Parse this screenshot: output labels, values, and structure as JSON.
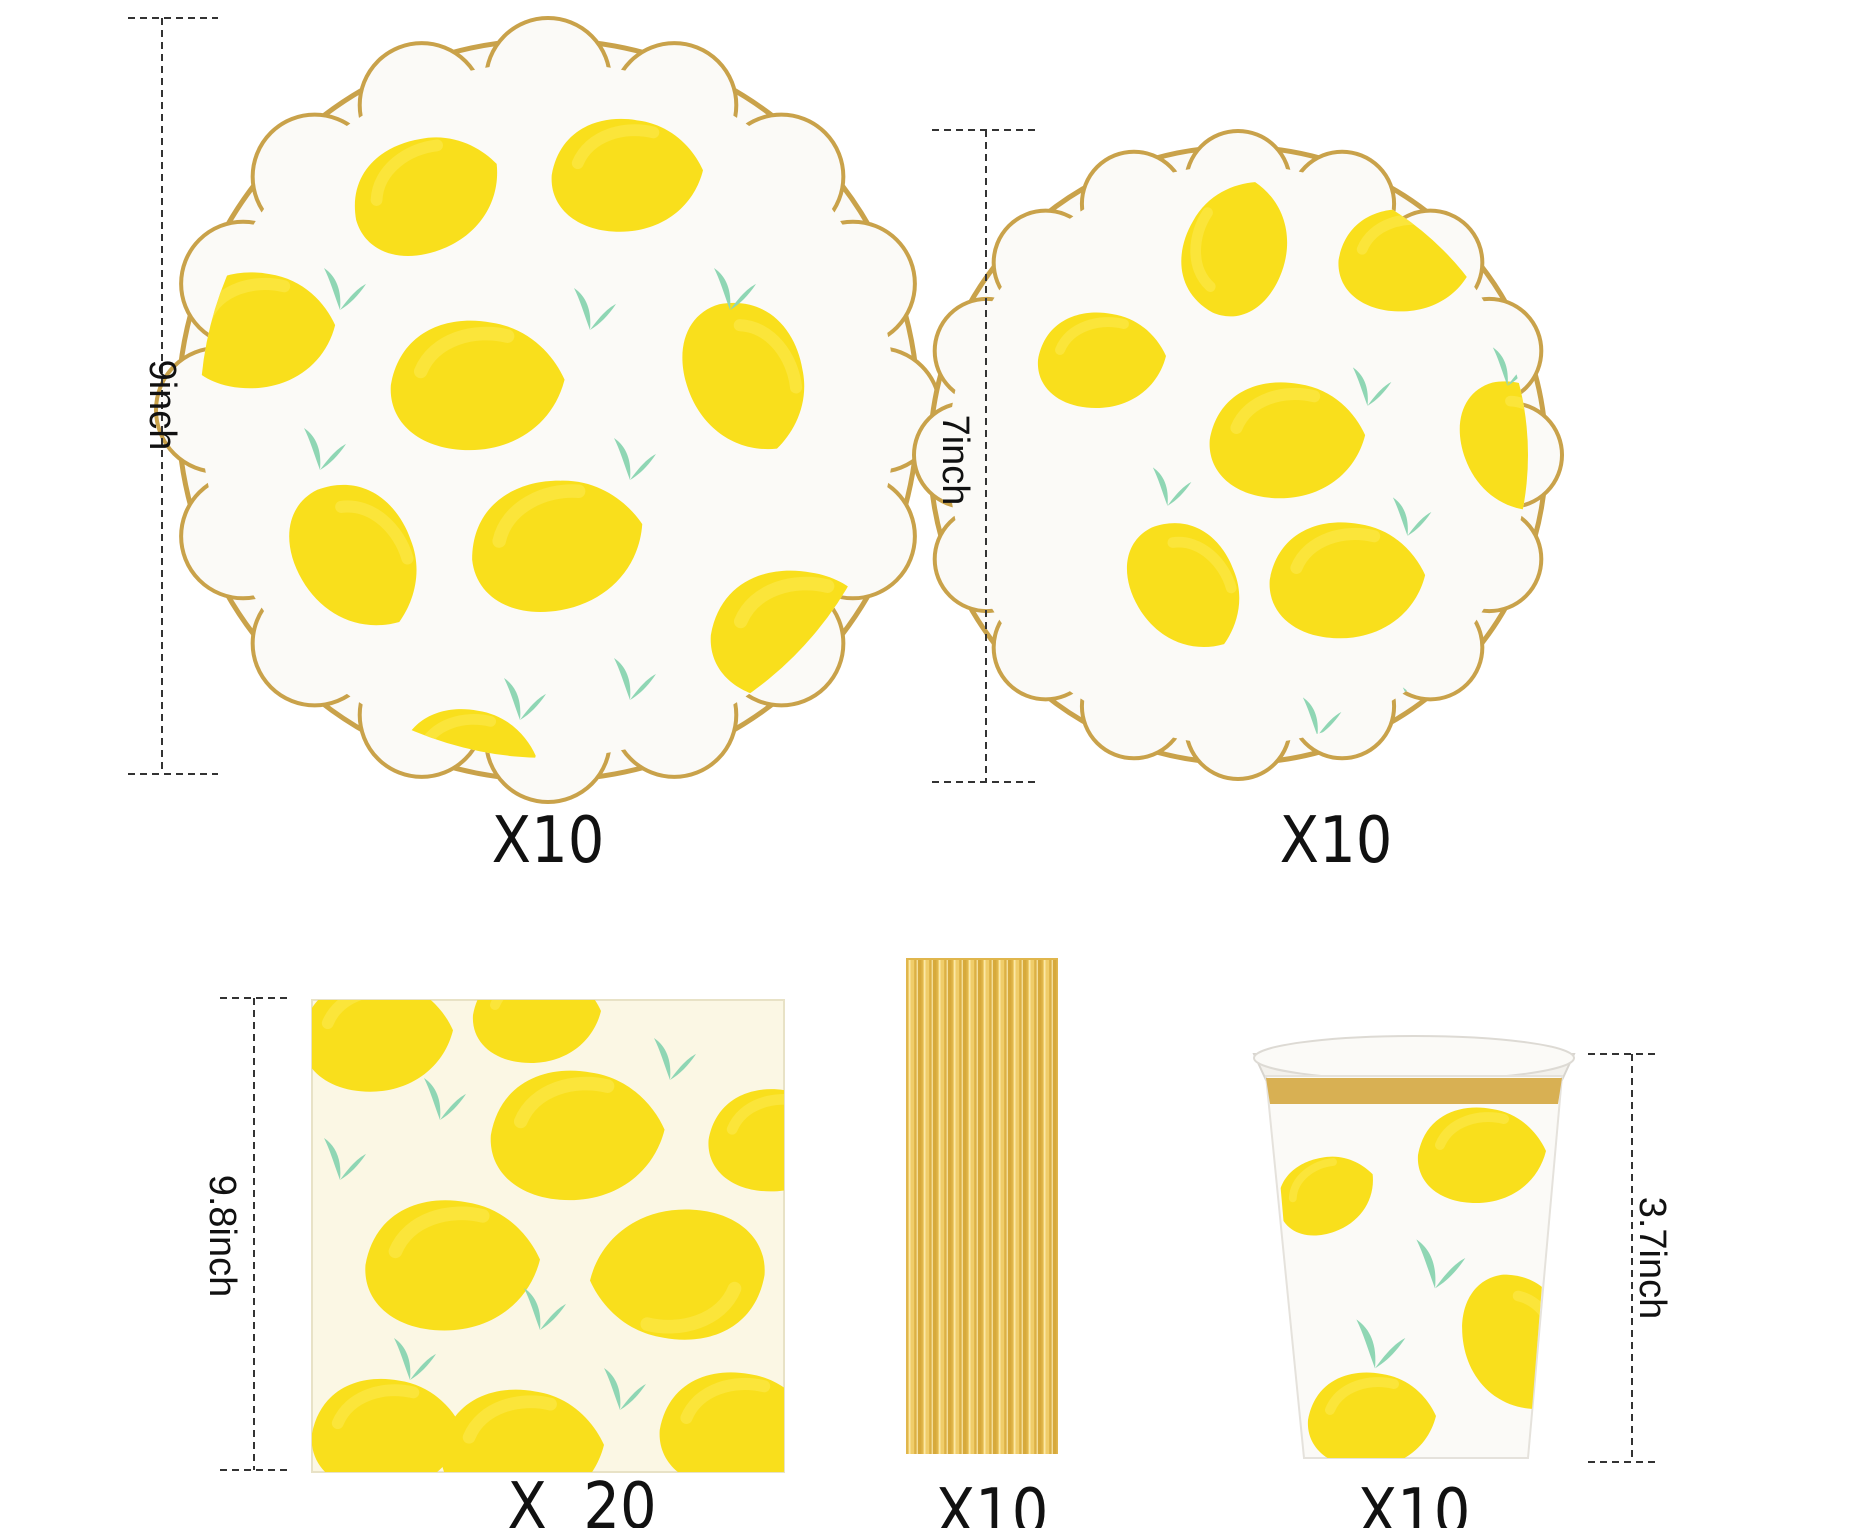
{
  "products": [
    {
      "id": "large-plate",
      "dimension": "9inch",
      "quantity": "X10"
    },
    {
      "id": "small-plate",
      "dimension": "7inch",
      "quantity": "X10"
    },
    {
      "id": "napkin",
      "dimension": "9.8inch",
      "quantity": "X  20"
    },
    {
      "id": "straws",
      "quantity": "X10"
    },
    {
      "id": "cup",
      "dimension": "3.7inch",
      "quantity": "X10"
    }
  ],
  "colors": {
    "lemon": "#f9df1c",
    "leaf": "#8fd6b4",
    "gold": "#c9a24a",
    "plate_bg": "#fbfaf7",
    "napkin_bg": "#fbf7e4",
    "background": "#ffffff"
  }
}
